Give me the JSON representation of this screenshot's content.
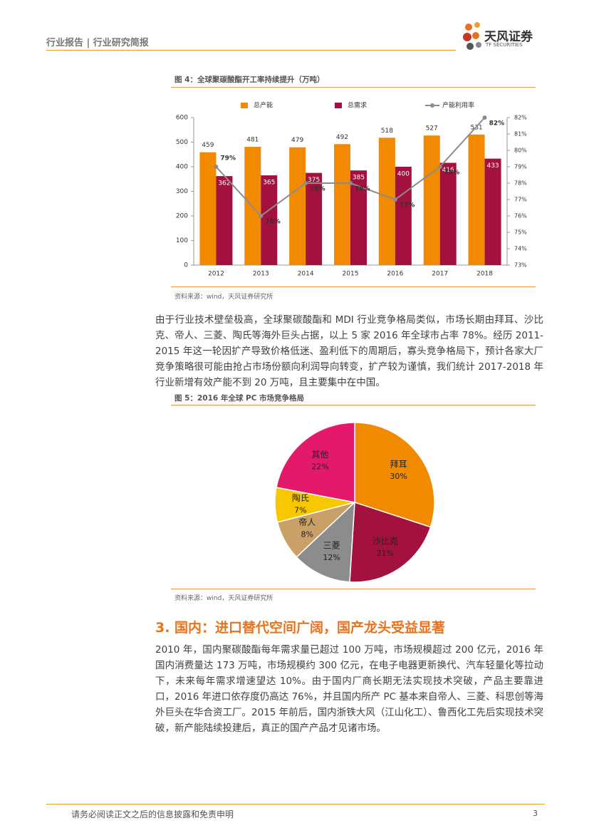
{
  "header": {
    "title": "行业报告 | 行业研究简报",
    "logo": "天风证券",
    "logo_en": "TF SECURITIES"
  },
  "chart_data": [
    {
      "type": "bar",
      "title": "图 4：全球聚碳酸酯开工率持续提升（万吨）",
      "categories": [
        "2012",
        "2013",
        "2014",
        "2015",
        "2016",
        "2017",
        "2018"
      ],
      "series": [
        {
          "name": "总产能",
          "color": "#f28a00",
          "values": [
            459,
            481,
            479,
            492,
            518,
            527,
            531
          ]
        },
        {
          "name": "总需求",
          "color": "#a3123e",
          "values": [
            362,
            365,
            375,
            385,
            400,
            416,
            433
          ]
        },
        {
          "name": "产能利用率",
          "type": "line",
          "axis": "y2",
          "color": "#8c8c8c",
          "values": [
            79,
            76,
            78,
            78,
            77,
            79,
            82
          ],
          "value_labels": [
            "79%",
            "76%",
            "78%",
            "78%",
            "77%",
            "79%",
            "82%"
          ]
        }
      ],
      "ylim": [
        0,
        600
      ],
      "yticks": [
        0,
        100,
        200,
        300,
        400,
        500,
        600
      ],
      "y2lim": [
        73,
        82
      ],
      "y2ticks": [
        {
          "value": 73,
          "label": "73%"
        },
        {
          "value": 74,
          "label": "74%"
        },
        {
          "value": 75,
          "label": "75%"
        },
        {
          "value": 76,
          "label": "76%"
        },
        {
          "value": 77,
          "label": "77%"
        },
        {
          "value": 78,
          "label": "78%"
        },
        {
          "value": 79,
          "label": "79%"
        },
        {
          "value": 80,
          "label": "80%"
        },
        {
          "value": 81,
          "label": "81%"
        },
        {
          "value": 82,
          "label": "82%"
        }
      ],
      "legend": "top",
      "source": "资料来源：wind，天风证券研究所"
    },
    {
      "type": "pie",
      "title": "图 5：2016 年全球 PC 市场竞争格局",
      "categories": [
        "拜耳",
        "沙比克",
        "三菱",
        "帝人",
        "陶氏",
        "其他"
      ],
      "values": [
        30,
        21,
        12,
        8,
        7,
        22
      ],
      "value_labels": [
        "30%",
        "21%",
        "12%",
        "8%",
        "7%",
        "22%"
      ],
      "colors": [
        "#f28a00",
        "#a3123e",
        "#8c8c8c",
        "#c9a067",
        "#f7c800",
        "#e5196c"
      ],
      "source": "资料来源：wind，天风证券研究所"
    }
  ],
  "paragraphs": [
    "由于行业技术壁垒极高，全球聚碳酸酯和 MDI 行业竞争格局类似，市场长期由拜耳、沙比克、帝人、三菱、陶氏等海外巨头占据，以上 5 家 2016 年全球市占率 78%。经历 2011-2015 年这一轮因扩产导致价格低迷、盈利低下的周期后，寡头竞争格局下，预计各家大厂竞争策略很可能由抢占市场份额向利润导向转变，扩产较为谨慎，我们统计 2017-2018 年行业新增有效产能不到 20 万吨，且主要集中在中国。"
  ],
  "section": {
    "title": "3. 国内：进口替代空间广阔，国产龙头受益显著",
    "paragraphs": [
      "2010 年，国内聚碳酸酯每年需求量已超过 100 万吨，市场规模超过 200 亿元，2016 年国内消费量达 173 万吨，市场规模约 300 亿元，在电子电器更新换代、汽车轻量化等拉动下，未来每年需求增速望达 10%。由于国内厂商长期无法实现技术突破，产品主要靠进口，2016 年进口依存度仍高达 76%，并且国内所产 PC 基本来自帝人、三菱、科思创等海外巨头在华合资工厂。2015 年前后，国内浙铁大风（江山化工）、鲁西化工先后实现技术突破，新产能陆续投建后，真正的国产产品才见诸市场。"
    ]
  },
  "footer": {
    "disclaimer": "请务必阅读正文之后的信息披露和免责申明",
    "page": 3
  }
}
